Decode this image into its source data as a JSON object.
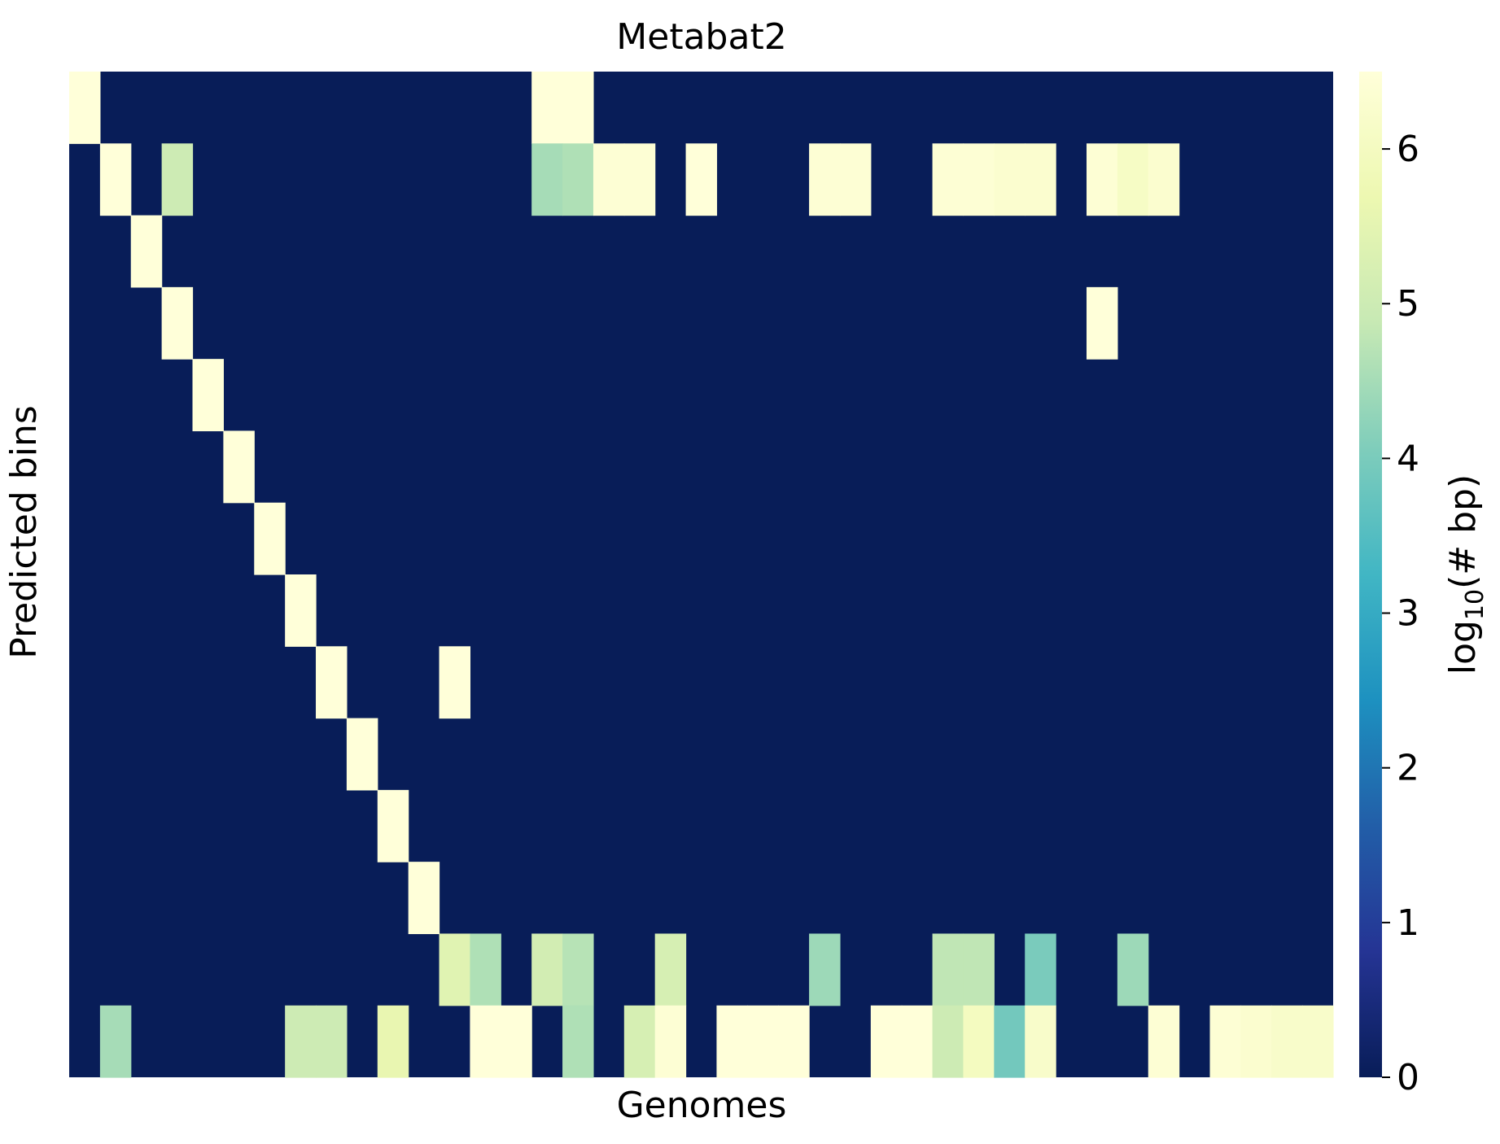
{
  "chart_data": {
    "type": "heatmap",
    "title": "Metabat2",
    "xlabel": "Genomes",
    "ylabel": "Predicted bins",
    "colorbar": {
      "label_main": "log",
      "label_sub": "10",
      "label_rest": "(# bp)",
      "range": [
        0,
        6.5
      ],
      "ticks": [
        "0",
        "1",
        "2",
        "3",
        "4",
        "5",
        "6"
      ],
      "colormap": "YlGnBu"
    },
    "n_cols": 41,
    "n_rows": 14,
    "background_value": 0,
    "cells": [
      [
        0,
        0,
        6.5
      ],
      [
        15,
        0,
        6.5
      ],
      [
        16,
        0,
        6.5
      ],
      [
        1,
        1,
        6.5
      ],
      [
        3,
        1,
        5.0
      ],
      [
        15,
        1,
        4.5
      ],
      [
        16,
        1,
        4.6
      ],
      [
        17,
        1,
        6.4
      ],
      [
        18,
        1,
        6.4
      ],
      [
        20,
        1,
        6.5
      ],
      [
        24,
        1,
        6.4
      ],
      [
        25,
        1,
        6.4
      ],
      [
        28,
        1,
        6.4
      ],
      [
        29,
        1,
        6.4
      ],
      [
        30,
        1,
        6.3
      ],
      [
        31,
        1,
        6.3
      ],
      [
        33,
        1,
        6.4
      ],
      [
        34,
        1,
        6.1
      ],
      [
        35,
        1,
        6.3
      ],
      [
        2,
        2,
        6.5
      ],
      [
        3,
        3,
        6.5
      ],
      [
        33,
        3,
        6.5
      ],
      [
        4,
        4,
        6.5
      ],
      [
        5,
        5,
        6.5
      ],
      [
        6,
        6,
        6.5
      ],
      [
        7,
        7,
        6.5
      ],
      [
        8,
        8,
        6.5
      ],
      [
        12,
        8,
        6.5
      ],
      [
        9,
        9,
        6.5
      ],
      [
        10,
        10,
        6.5
      ],
      [
        11,
        11,
        6.5
      ],
      [
        12,
        12,
        5.4
      ],
      [
        13,
        12,
        4.6
      ],
      [
        15,
        12,
        5.1
      ],
      [
        16,
        12,
        4.7
      ],
      [
        19,
        12,
        5.2
      ],
      [
        24,
        12,
        4.4
      ],
      [
        28,
        12,
        4.8
      ],
      [
        29,
        12,
        4.8
      ],
      [
        31,
        12,
        4.0
      ],
      [
        34,
        12,
        4.4
      ],
      [
        1,
        13,
        4.5
      ],
      [
        7,
        13,
        5.0
      ],
      [
        8,
        13,
        5.0
      ],
      [
        10,
        13,
        5.6
      ],
      [
        13,
        13,
        6.5
      ],
      [
        14,
        13,
        6.5
      ],
      [
        16,
        13,
        4.6
      ],
      [
        18,
        13,
        5.2
      ],
      [
        19,
        13,
        6.4
      ],
      [
        21,
        13,
        6.5
      ],
      [
        22,
        13,
        6.5
      ],
      [
        23,
        13,
        6.5
      ],
      [
        26,
        13,
        6.5
      ],
      [
        27,
        13,
        6.5
      ],
      [
        28,
        13,
        5.0
      ],
      [
        29,
        13,
        6.0
      ],
      [
        30,
        13,
        3.9
      ],
      [
        31,
        13,
        6.2
      ],
      [
        35,
        13,
        6.4
      ],
      [
        37,
        13,
        6.4
      ],
      [
        38,
        13,
        6.3
      ],
      [
        39,
        13,
        6.2
      ],
      [
        40,
        13,
        6.2
      ]
    ]
  }
}
